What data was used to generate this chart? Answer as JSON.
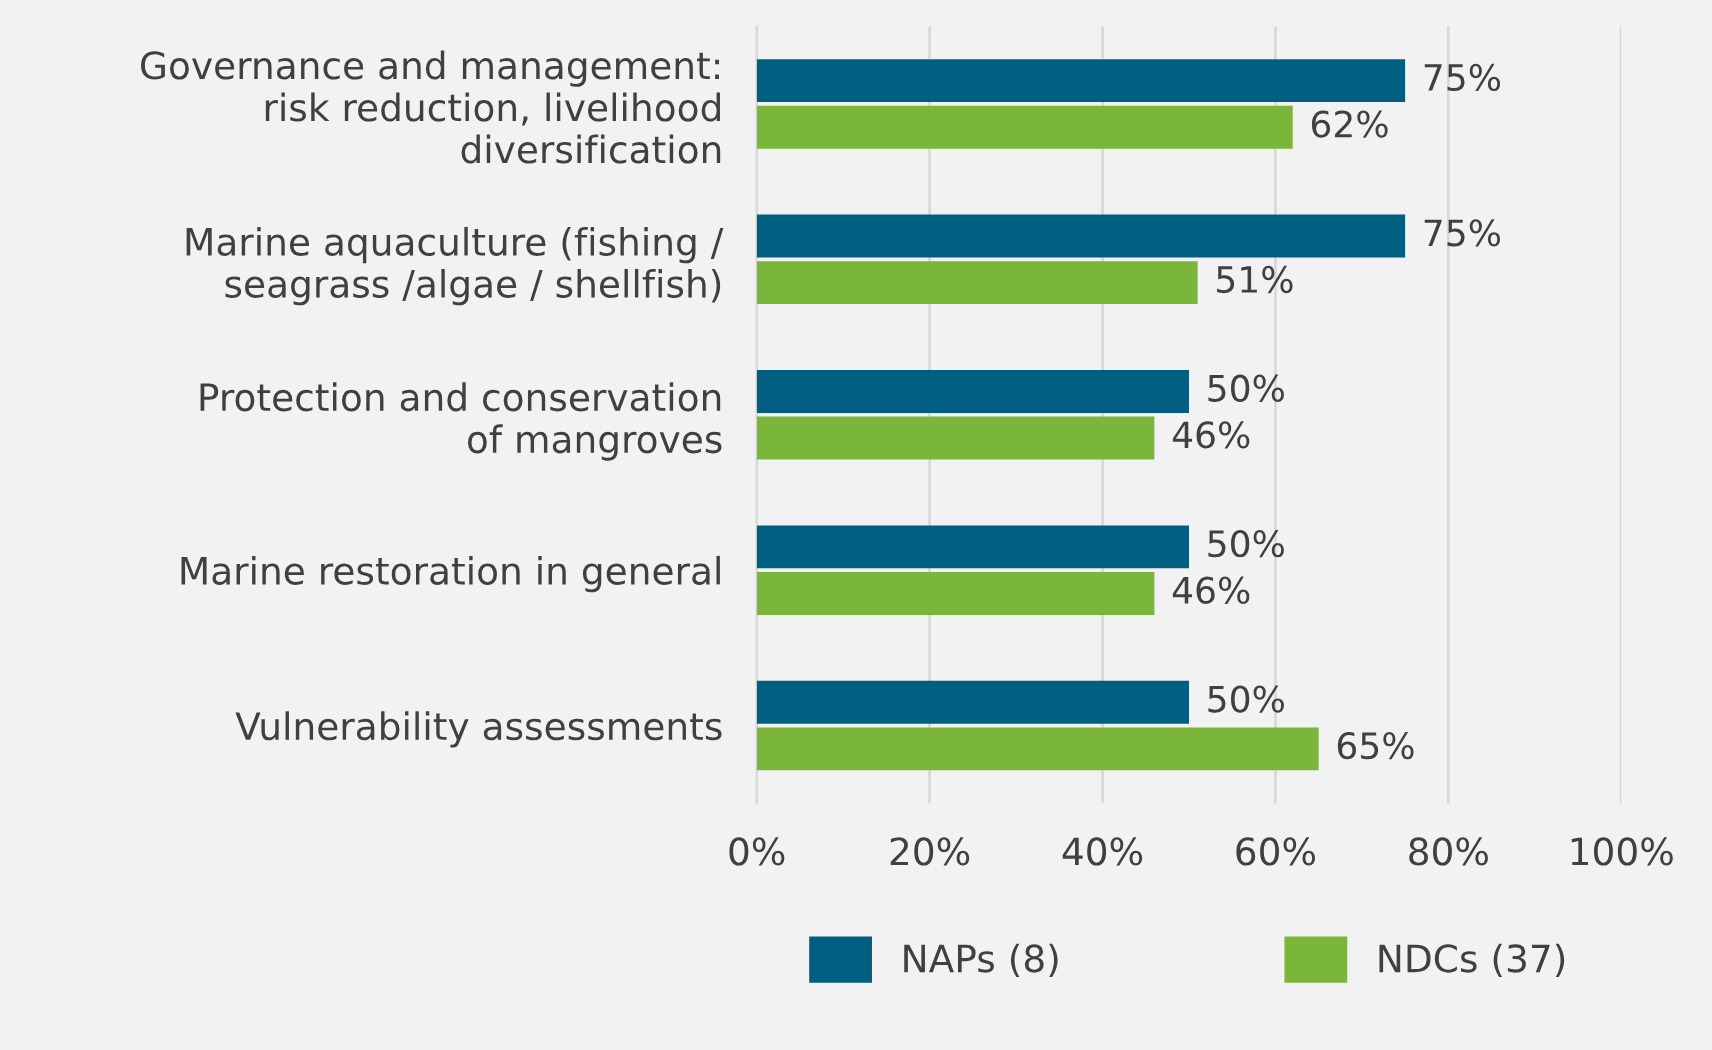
{
  "chart_data": {
    "type": "bar",
    "orientation": "horizontal",
    "categories": [
      "Governance and management:\nrisk reduction, livelihood\ndiversification",
      "Marine aquaculture (fishing /\nseagrass /algae / shellfish)",
      "Protection and conservation\nof mangroves",
      "Marine restoration in general",
      "Vulnerability assessments"
    ],
    "series": [
      {
        "name": "NAPs (8)",
        "color": "#005f80",
        "values": [
          75,
          75,
          50,
          50,
          50
        ],
        "value_labels": [
          "75%",
          "75%",
          "50%",
          "50%",
          "50%"
        ]
      },
      {
        "name": "NDCs (37)",
        "color": "#7ab63a",
        "values": [
          62,
          51,
          46,
          46,
          65
        ],
        "value_labels": [
          "62%",
          "51%",
          "46%",
          "46%",
          "65%"
        ]
      }
    ],
    "xlim": [
      0,
      100
    ],
    "xticks": [
      {
        "value": 0,
        "label": "0%"
      },
      {
        "value": 20,
        "label": "20%"
      },
      {
        "value": 40,
        "label": "40%"
      },
      {
        "value": 60,
        "label": "60%"
      },
      {
        "value": 80,
        "label": "80%"
      },
      {
        "value": 100,
        "label": "100%"
      }
    ],
    "grid": "x",
    "legend": "bottom"
  }
}
